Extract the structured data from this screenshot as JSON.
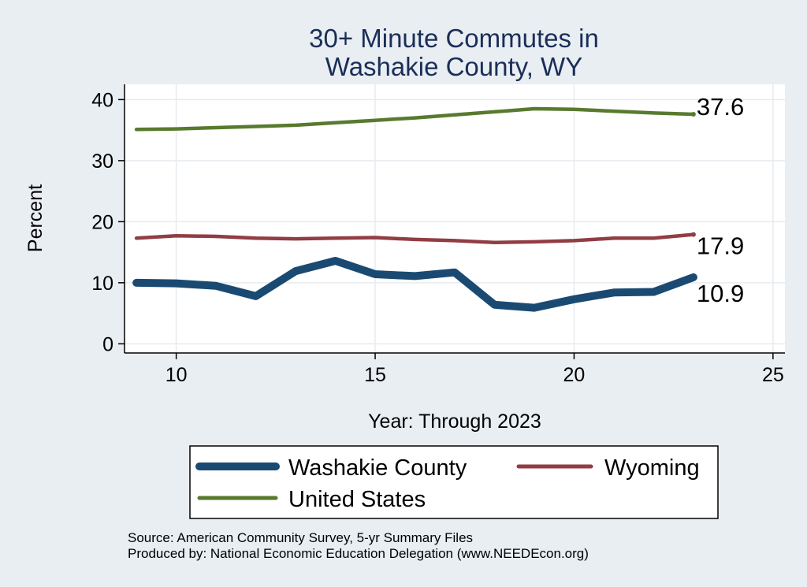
{
  "chart_data": {
    "type": "line",
    "title_lines": [
      "30+ Minute Commutes in",
      "Washakie County, WY"
    ],
    "xlabel": "Year: Through 2023",
    "ylabel": "Percent",
    "xlim": [
      8.7,
      25.3
    ],
    "ylim": [
      -1.5,
      42.5
    ],
    "xticks": [
      10,
      15,
      20,
      25
    ],
    "yticks": [
      0,
      10,
      20,
      30,
      40
    ],
    "grid": true,
    "legend_position": "bottom",
    "series": [
      {
        "name": "Washakie County",
        "color": "#1a4a72",
        "x": [
          9,
          10,
          11,
          12,
          13,
          14,
          15,
          16,
          17,
          18,
          19,
          20,
          21,
          22,
          23
        ],
        "y": [
          10.0,
          9.9,
          9.5,
          7.8,
          11.9,
          13.6,
          11.4,
          11.1,
          11.7,
          6.4,
          5.9,
          7.3,
          8.4,
          8.5,
          10.9
        ],
        "end_label": "10.9"
      },
      {
        "name": "Wyoming",
        "color": "#913d43",
        "x": [
          9,
          10,
          11,
          12,
          13,
          14,
          15,
          16,
          17,
          18,
          19,
          20,
          21,
          22,
          23
        ],
        "y": [
          17.3,
          17.7,
          17.6,
          17.3,
          17.2,
          17.3,
          17.4,
          17.1,
          16.9,
          16.6,
          16.7,
          16.9,
          17.3,
          17.3,
          17.9
        ],
        "end_label": "17.9"
      },
      {
        "name": "United States",
        "color": "#587a2f",
        "x": [
          9,
          10,
          11,
          12,
          13,
          14,
          15,
          16,
          17,
          18,
          19,
          20,
          21,
          22,
          23
        ],
        "y": [
          35.1,
          35.2,
          35.4,
          35.6,
          35.8,
          36.2,
          36.6,
          37.0,
          37.5,
          38.0,
          38.5,
          38.4,
          38.1,
          37.8,
          37.6
        ],
        "end_label": "37.6"
      }
    ],
    "source_lines": [
      "Source: American Community Survey, 5-yr Summary Files",
      "Produced by: National Economic Education Delegation (www.NEEDEcon.org)"
    ]
  }
}
